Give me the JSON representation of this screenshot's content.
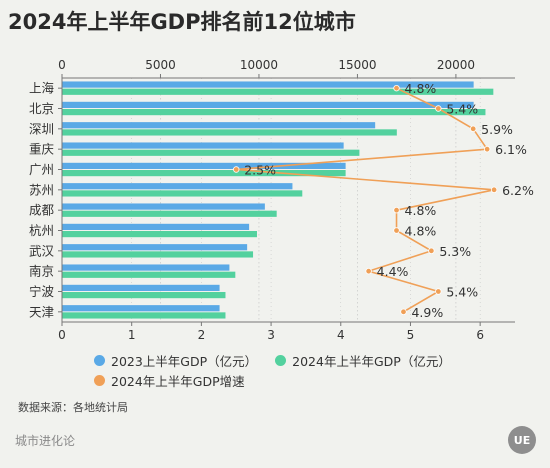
{
  "title": "2024年上半年GDP排名前12位城市",
  "source": "数据来源：各地统计局",
  "brand": "城市进化论",
  "logo_text": "UE",
  "colors": {
    "gdp2023": "#5aa9e6",
    "gdp2024": "#53d19e",
    "growth": "#f0a057",
    "axis": "#777777",
    "text": "#333333",
    "grid": "#bfbfbf"
  },
  "legend": [
    {
      "label": "2023上半年GDP（亿元）",
      "color": "#5aa9e6"
    },
    {
      "label": "2024年上半年GDP（亿元）",
      "color": "#53d19e"
    },
    {
      "label": "2024年上半年GDP增速",
      "color": "#f0a057"
    }
  ],
  "chart_data": {
    "type": "bar",
    "orientation": "horizontal",
    "categories": [
      "上海",
      "北京",
      "深圳",
      "重庆",
      "广州",
      "苏州",
      "成都",
      "杭州",
      "武汉",
      "南京",
      "宁波",
      "天津"
    ],
    "series": [
      {
        "name": "2023上半年GDP（亿元）",
        "axis": "top",
        "values": [
          20900,
          20900,
          15900,
          14300,
          14400,
          11700,
          10300,
          9500,
          9400,
          8500,
          8000,
          8000
        ]
      },
      {
        "name": "2024年上半年GDP（亿元）",
        "axis": "top",
        "values": [
          21900,
          21500,
          17000,
          15100,
          14400,
          12200,
          10900,
          9900,
          9700,
          8800,
          8300,
          8300
        ]
      }
    ],
    "line_series": {
      "name": "2024年上半年GDP增速",
      "axis": "bottom",
      "values": [
        4.8,
        5.4,
        5.9,
        6.1,
        2.5,
        6.2,
        4.8,
        4.8,
        5.3,
        4.4,
        5.4,
        4.9
      ],
      "labels": [
        "4.8%",
        "5.4%",
        "5.9%",
        "6.1%",
        "2.5%",
        "6.2%",
        "4.8%",
        "4.8%",
        "5.3%",
        "4.4%",
        "5.4%",
        "4.9%"
      ]
    },
    "top_axis": {
      "ticks": [
        0,
        5000,
        10000,
        15000,
        20000
      ],
      "tick_labels": [
        "0",
        "5000",
        "10000",
        "15000",
        "20000"
      ],
      "range": [
        0,
        23000
      ]
    },
    "bottom_axis": {
      "ticks": [
        0,
        1,
        2,
        3,
        4,
        5,
        6
      ],
      "tick_labels": [
        "0",
        "1",
        "2",
        "3",
        "4",
        "5",
        "6"
      ],
      "range": [
        0,
        6.5
      ]
    },
    "grid": true,
    "legend_position": "bottom"
  }
}
